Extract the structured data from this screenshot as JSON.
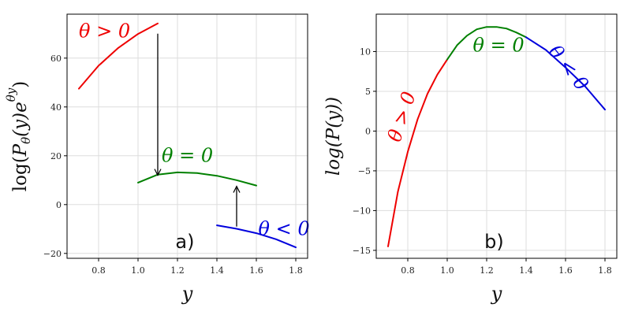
{
  "chart_data": [
    {
      "type": "line",
      "panel_tag": "a)",
      "xlabel": "y",
      "ylabel": "log(Pθ(y)e^θy)",
      "ylabel_parts": [
        "log(",
        "P",
        "θ",
        "(y)e",
        "θy",
        ")"
      ],
      "xlim": [
        0.64,
        1.86
      ],
      "ylim": [
        -22,
        78
      ],
      "xticks": [
        0.8,
        1.0,
        1.2,
        1.4,
        1.6,
        1.8
      ],
      "xtick_labels": [
        "0.8",
        "1.0",
        "1.2",
        "1.4",
        "1.6",
        "1.8"
      ],
      "yticks": [
        -20,
        0,
        20,
        40,
        60
      ],
      "ytick_labels": [
        "−20",
        "0",
        "20",
        "40",
        "60"
      ],
      "grid": true,
      "series": [
        {
          "name": "θ > 0",
          "color": "#ee0000",
          "x": [
            0.7,
            0.8,
            0.9,
            1.0,
            1.1
          ],
          "y": [
            47.5,
            56.9,
            64.2,
            69.9,
            74.2
          ]
        },
        {
          "name": "θ = 0",
          "color": "#008000",
          "x": [
            1.0,
            1.1,
            1.2,
            1.3,
            1.4,
            1.5,
            1.6
          ],
          "y": [
            9.0,
            12.3,
            13.2,
            12.9,
            11.8,
            10.0,
            7.8
          ]
        },
        {
          "name": "θ < 0",
          "color": "#0000dd",
          "x": [
            1.4,
            1.5,
            1.6,
            1.7,
            1.8
          ],
          "y": [
            -8.5,
            -9.9,
            -11.7,
            -14.2,
            -17.5
          ]
        }
      ],
      "arrows": [
        {
          "from": [
            1.1,
            70.0
          ],
          "to": [
            1.1,
            12.0
          ]
        },
        {
          "from": [
            1.5,
            -9.0
          ],
          "to": [
            1.5,
            7.5
          ]
        }
      ],
      "annotations": [
        {
          "text": "θ > 0",
          "x": 0.7,
          "y": 68.5,
          "color": "#ee0000"
        },
        {
          "text": "θ = 0",
          "x": 1.12,
          "y": 17.5,
          "color": "#008000"
        },
        {
          "text": "θ < 0",
          "x": 1.61,
          "y": -12.5,
          "color": "#0000dd"
        }
      ]
    },
    {
      "type": "line",
      "panel_tag": "b)",
      "xlabel": "y",
      "ylabel": "log(P(y))",
      "xlim": [
        0.64,
        1.86
      ],
      "ylim": [
        -16,
        14.7
      ],
      "xticks": [
        0.8,
        1.0,
        1.2,
        1.4,
        1.6,
        1.8
      ],
      "xtick_labels": [
        "0.8",
        "1.0",
        "1.2",
        "1.4",
        "1.6",
        "1.8"
      ],
      "yticks": [
        -15,
        -10,
        -5,
        0,
        5,
        10
      ],
      "ytick_labels": [
        "−15",
        "−10",
        "−5",
        "0",
        "5",
        "10"
      ],
      "grid": true,
      "series": [
        {
          "name": "θ > 0",
          "color": "#ee0000",
          "x": [
            0.7,
            0.75,
            0.8,
            0.85,
            0.9,
            0.95,
            1.0
          ],
          "y": [
            -14.5,
            -7.6,
            -2.6,
            1.5,
            4.7,
            7.1,
            9.0
          ]
        },
        {
          "name": "θ = 0",
          "color": "#008000",
          "x": [
            1.0,
            1.05,
            1.1,
            1.15,
            1.2,
            1.25,
            1.3,
            1.35,
            1.4
          ],
          "y": [
            9.0,
            10.8,
            12.0,
            12.8,
            13.1,
            13.1,
            12.9,
            12.4,
            11.8
          ]
        },
        {
          "name": "θ < 0",
          "color": "#0000dd",
          "x": [
            1.4,
            1.5,
            1.6,
            1.7,
            1.8
          ],
          "y": [
            11.8,
            10.2,
            8.0,
            5.6,
            2.7
          ]
        }
      ],
      "annotations": [
        {
          "text": "θ > 0",
          "x": 0.76,
          "y": -1.5,
          "color": "#ee0000",
          "rotate": -72
        },
        {
          "text": "θ = 0",
          "x": 1.13,
          "y": 10.0,
          "color": "#008000"
        },
        {
          "text": "θ < 0",
          "x": 1.51,
          "y": 10.0,
          "color": "#0000dd",
          "rotate": 52
        }
      ]
    }
  ]
}
